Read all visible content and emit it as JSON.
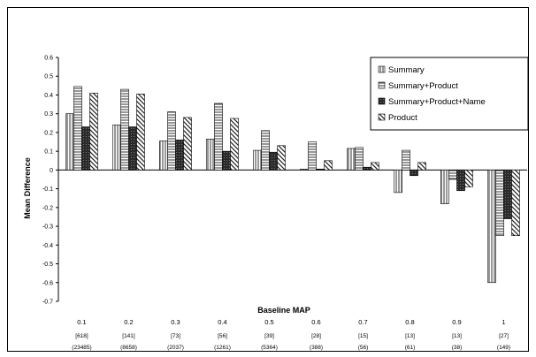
{
  "chart_data": {
    "type": "bar",
    "title": "",
    "xlabel": "Baseline MAP",
    "ylabel": "Mean Difference",
    "ylim": [
      -0.7,
      0.6
    ],
    "y_ticks": [
      0.6,
      0.5,
      0.4,
      0.3,
      0.2,
      0.1,
      0,
      -0.1,
      -0.2,
      -0.3,
      -0.4,
      -0.5,
      -0.6,
      -0.7
    ],
    "grid": false,
    "legend_position": "top-right",
    "categories": [
      "0.1",
      "0.2",
      "0.3",
      "0.4",
      "0.5",
      "0.6",
      "0.7",
      "0.8",
      "0.9",
      "1"
    ],
    "sub_labels_1": [
      "[618]",
      "[141]",
      "[73]",
      "[56]",
      "[39]",
      "[28]",
      "[15]",
      "[13]",
      "[13]",
      "[27]"
    ],
    "sub_labels_2": [
      "(23485)",
      "(8658)",
      "(2037)",
      "(1261)",
      "(5364)",
      "(388)",
      "(56)",
      "(61)",
      "(38)",
      "(149)"
    ],
    "series": [
      {
        "name": "Summary",
        "pattern": "vertical",
        "values": [
          0.3,
          0.24,
          0.155,
          0.165,
          0.105,
          0.005,
          0.115,
          -0.12,
          -0.18,
          -0.6
        ]
      },
      {
        "name": "Summary+Product",
        "pattern": "horizontal",
        "values": [
          0.445,
          0.43,
          0.31,
          0.355,
          0.21,
          0.15,
          0.12,
          0.105,
          -0.05,
          -0.35
        ]
      },
      {
        "name": "Summary+Product+Name",
        "pattern": "solid-dark",
        "values": [
          0.23,
          0.23,
          0.16,
          0.1,
          0.095,
          0.005,
          0.015,
          -0.03,
          -0.11,
          -0.26
        ]
      },
      {
        "name": "Product",
        "pattern": "diagonal",
        "values": [
          0.41,
          0.405,
          0.28,
          0.275,
          0.13,
          0.05,
          0.04,
          0.04,
          -0.09,
          -0.35
        ]
      }
    ]
  }
}
